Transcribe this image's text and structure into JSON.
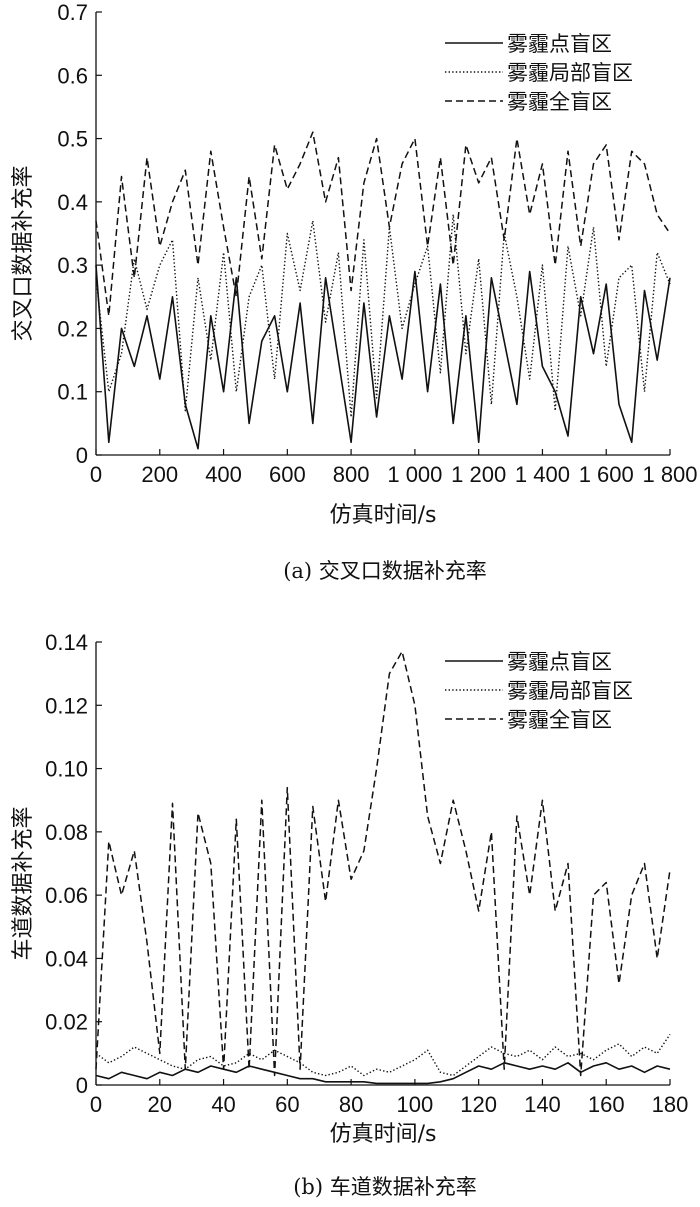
{
  "chart_data": [
    {
      "type": "line",
      "caption": "(a) 交叉口数据补充率",
      "xlabel": "仿真时间/s",
      "ylabel": "交叉口数据补充率",
      "xlim": [
        0,
        1800
      ],
      "ylim": [
        0,
        0.7
      ],
      "xticks": [
        0,
        200,
        400,
        600,
        800,
        1000,
        1200,
        1400,
        1600,
        1800
      ],
      "xtick_labels": [
        "0",
        "200",
        "400",
        "600",
        "800",
        "1 000",
        "1 200",
        "1 400",
        "1 600",
        "1 800"
      ],
      "yticks": [
        0,
        0.1,
        0.2,
        0.3,
        0.4,
        0.5,
        0.6,
        0.7
      ],
      "ytick_labels": [
        "0",
        "0.1",
        "0.2",
        "0.3",
        "0.4",
        "0.5",
        "0.6",
        "0.7"
      ],
      "legend_position": "top-right",
      "x": [
        0,
        40,
        80,
        120,
        160,
        200,
        240,
        280,
        320,
        360,
        400,
        440,
        480,
        520,
        560,
        600,
        640,
        680,
        720,
        760,
        800,
        840,
        880,
        920,
        960,
        1000,
        1040,
        1080,
        1120,
        1160,
        1200,
        1240,
        1280,
        1320,
        1360,
        1400,
        1440,
        1480,
        1520,
        1560,
        1600,
        1640,
        1680,
        1720,
        1760,
        1800
      ],
      "series": [
        {
          "name": "雾霾点盲区",
          "style": "solid",
          "values": [
            0.3,
            0.02,
            0.2,
            0.14,
            0.22,
            0.12,
            0.25,
            0.08,
            0.01,
            0.22,
            0.1,
            0.28,
            0.05,
            0.18,
            0.22,
            0.1,
            0.24,
            0.05,
            0.28,
            0.15,
            0.02,
            0.24,
            0.06,
            0.22,
            0.12,
            0.29,
            0.1,
            0.27,
            0.05,
            0.22,
            0.02,
            0.28,
            0.18,
            0.08,
            0.29,
            0.14,
            0.1,
            0.03,
            0.25,
            0.16,
            0.27,
            0.08,
            0.02,
            0.26,
            0.15,
            0.28
          ]
        },
        {
          "name": "雾霾局部盲区",
          "style": "dotted",
          "values": [
            0.28,
            0.1,
            0.16,
            0.31,
            0.23,
            0.3,
            0.34,
            0.07,
            0.28,
            0.15,
            0.32,
            0.1,
            0.25,
            0.3,
            0.12,
            0.35,
            0.26,
            0.37,
            0.21,
            0.32,
            0.06,
            0.34,
            0.09,
            0.36,
            0.2,
            0.27,
            0.33,
            0.13,
            0.38,
            0.16,
            0.31,
            0.08,
            0.35,
            0.25,
            0.12,
            0.3,
            0.07,
            0.33,
            0.22,
            0.36,
            0.14,
            0.28,
            0.3,
            0.1,
            0.32,
            0.27
          ]
        },
        {
          "name": "雾霾全盲区",
          "style": "dashed",
          "values": [
            0.37,
            0.22,
            0.44,
            0.28,
            0.47,
            0.33,
            0.4,
            0.45,
            0.3,
            0.48,
            0.36,
            0.25,
            0.44,
            0.31,
            0.49,
            0.42,
            0.46,
            0.51,
            0.4,
            0.47,
            0.26,
            0.43,
            0.5,
            0.36,
            0.46,
            0.5,
            0.33,
            0.47,
            0.3,
            0.49,
            0.43,
            0.47,
            0.34,
            0.5,
            0.38,
            0.46,
            0.3,
            0.48,
            0.33,
            0.46,
            0.49,
            0.34,
            0.48,
            0.46,
            0.38,
            0.35
          ]
        }
      ]
    },
    {
      "type": "line",
      "caption": "(b) 车道数据补充率",
      "xlabel": "仿真时间/s",
      "ylabel": "车道数据补充率",
      "xlim": [
        0,
        180
      ],
      "ylim": [
        0,
        0.14
      ],
      "xticks": [
        0,
        20,
        40,
        60,
        80,
        100,
        120,
        140,
        160,
        180
      ],
      "xtick_labels": [
        "0",
        "20",
        "40",
        "60",
        "80",
        "100",
        "120",
        "140",
        "160",
        "180"
      ],
      "yticks": [
        0,
        0.02,
        0.04,
        0.06,
        0.08,
        0.1,
        0.12,
        0.14
      ],
      "ytick_labels": [
        "0",
        "0.02",
        "0.04",
        "0.06",
        "0.08",
        "0.10",
        "0.12",
        "0.14"
      ],
      "legend_position": "top-right",
      "x": [
        0,
        4,
        8,
        12,
        16,
        20,
        24,
        28,
        32,
        36,
        40,
        44,
        48,
        52,
        56,
        60,
        64,
        68,
        72,
        76,
        80,
        84,
        88,
        92,
        96,
        100,
        104,
        108,
        112,
        116,
        120,
        124,
        128,
        132,
        136,
        140,
        144,
        148,
        152,
        156,
        160,
        164,
        168,
        172,
        176,
        180
      ],
      "series": [
        {
          "name": "雾霾点盲区",
          "style": "solid",
          "values": [
            0.003,
            0.002,
            0.004,
            0.003,
            0.002,
            0.004,
            0.003,
            0.005,
            0.004,
            0.006,
            0.005,
            0.004,
            0.006,
            0.005,
            0.004,
            0.003,
            0.002,
            0.002,
            0.001,
            0.001,
            0.001,
            0.001,
            0.0005,
            0.0005,
            0.0005,
            0.0005,
            0.0005,
            0.001,
            0.002,
            0.004,
            0.006,
            0.005,
            0.007,
            0.006,
            0.005,
            0.006,
            0.005,
            0.007,
            0.004,
            0.006,
            0.007,
            0.005,
            0.006,
            0.004,
            0.006,
            0.005
          ]
        },
        {
          "name": "雾霾局部盲区",
          "style": "dotted",
          "values": [
            0.01,
            0.007,
            0.009,
            0.012,
            0.01,
            0.008,
            0.006,
            0.005,
            0.008,
            0.009,
            0.006,
            0.007,
            0.01,
            0.008,
            0.011,
            0.009,
            0.007,
            0.004,
            0.003,
            0.004,
            0.006,
            0.003,
            0.005,
            0.004,
            0.006,
            0.008,
            0.011,
            0.004,
            0.003,
            0.006,
            0.009,
            0.012,
            0.01,
            0.009,
            0.011,
            0.008,
            0.012,
            0.009,
            0.01,
            0.008,
            0.011,
            0.013,
            0.009,
            0.012,
            0.01,
            0.016
          ]
        },
        {
          "name": "雾霾全盲区",
          "style": "dashed",
          "values": [
            0.005,
            0.077,
            0.06,
            0.074,
            0.045,
            0.01,
            0.089,
            0.005,
            0.086,
            0.07,
            0.005,
            0.084,
            0.005,
            0.09,
            0.003,
            0.094,
            0.005,
            0.088,
            0.058,
            0.09,
            0.065,
            0.074,
            0.1,
            0.13,
            0.137,
            0.12,
            0.085,
            0.07,
            0.09,
            0.074,
            0.055,
            0.08,
            0.005,
            0.085,
            0.06,
            0.09,
            0.055,
            0.07,
            0.003,
            0.06,
            0.064,
            0.032,
            0.06,
            0.07,
            0.04,
            0.068
          ]
        }
      ]
    }
  ]
}
